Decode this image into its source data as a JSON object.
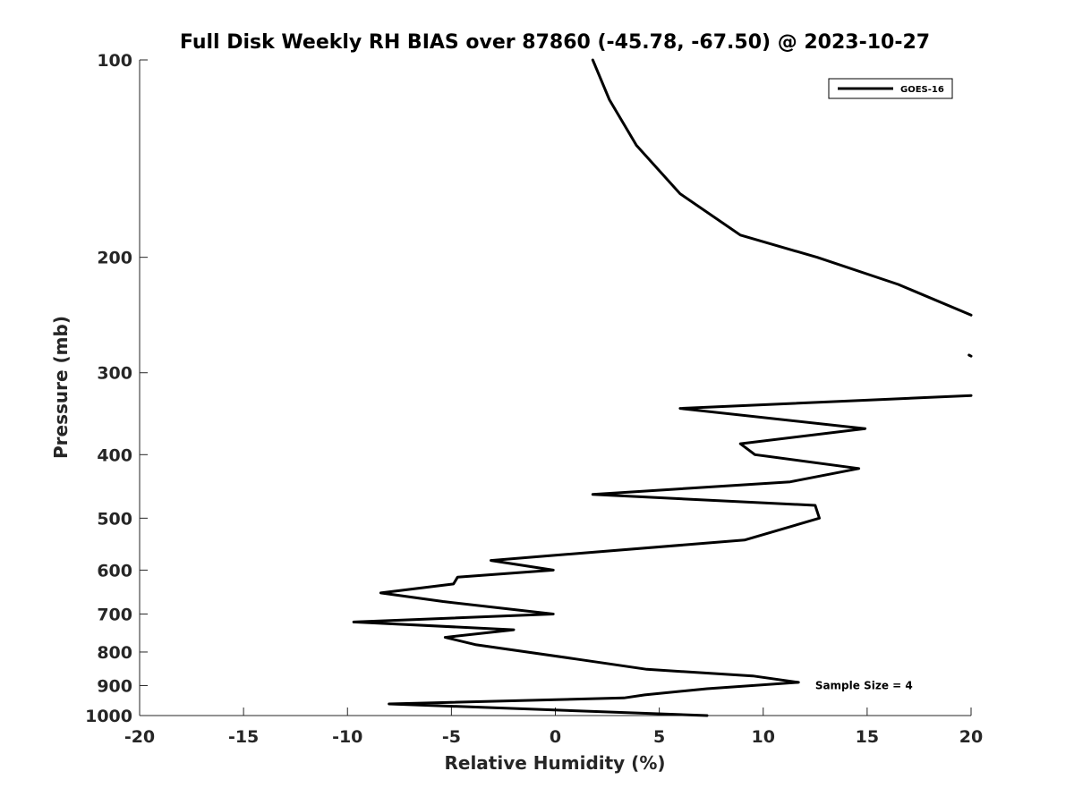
{
  "chart_data": {
    "type": "line",
    "title": "Full Disk Weekly RH BIAS over 87860 (-45.78, -67.50) @ 2023-10-27",
    "xlabel": "Relative Humidity (%)",
    "ylabel": "Pressure (mb)",
    "xlim": [
      -20,
      20
    ],
    "ylim": [
      100,
      1000
    ],
    "yscale": "log",
    "y_reversed": true,
    "x_ticks": [
      -20,
      -15,
      -10,
      -5,
      0,
      5,
      10,
      15,
      20
    ],
    "x_tick_labels": [
      "-20",
      "-15",
      "-10",
      "-5",
      "0",
      "5",
      "10",
      "15",
      "20"
    ],
    "y_ticks": [
      100,
      200,
      300,
      400,
      500,
      600,
      700,
      800,
      900,
      1000
    ],
    "y_tick_labels": [
      "100",
      "200",
      "300",
      "400",
      "500",
      "600",
      "700",
      "800",
      "900",
      "1000"
    ],
    "grid": false,
    "legend_position": "top-right",
    "line_color": "#000000",
    "series": [
      {
        "name": "GOES-16",
        "segments": [
          [
            {
              "x": 1.8,
              "y": 100
            },
            {
              "x": 2.6,
              "y": 115
            },
            {
              "x": 3.9,
              "y": 135
            },
            {
              "x": 6.0,
              "y": 160
            },
            {
              "x": 8.9,
              "y": 185
            },
            {
              "x": 12.6,
              "y": 200
            },
            {
              "x": 16.5,
              "y": 220
            },
            {
              "x": 20.0,
              "y": 245
            }
          ],
          [
            {
              "x": 19.9,
              "y": 282
            },
            {
              "x": 20.0,
              "y": 283
            }
          ],
          [
            {
              "x": 20.0,
              "y": 325
            },
            {
              "x": 6.0,
              "y": 340
            },
            {
              "x": 14.9,
              "y": 365
            },
            {
              "x": 8.9,
              "y": 385
            },
            {
              "x": 9.6,
              "y": 400
            },
            {
              "x": 14.6,
              "y": 420
            },
            {
              "x": 11.3,
              "y": 440
            },
            {
              "x": 1.8,
              "y": 460
            },
            {
              "x": 12.5,
              "y": 478
            },
            {
              "x": 12.7,
              "y": 500
            },
            {
              "x": 9.1,
              "y": 540
            },
            {
              "x": -0.2,
              "y": 570
            },
            {
              "x": -3.1,
              "y": 580
            },
            {
              "x": -0.1,
              "y": 600
            },
            {
              "x": -4.7,
              "y": 615
            },
            {
              "x": -4.9,
              "y": 630
            },
            {
              "x": -8.4,
              "y": 650
            },
            {
              "x": -5.4,
              "y": 670
            },
            {
              "x": -0.1,
              "y": 700
            },
            {
              "x": -9.7,
              "y": 720
            },
            {
              "x": -2.0,
              "y": 740
            },
            {
              "x": -5.3,
              "y": 760
            },
            {
              "x": -3.8,
              "y": 780
            },
            {
              "x": 1.0,
              "y": 820
            },
            {
              "x": 4.4,
              "y": 850
            },
            {
              "x": 9.5,
              "y": 870
            },
            {
              "x": 11.7,
              "y": 890
            },
            {
              "x": 7.3,
              "y": 910
            },
            {
              "x": 4.3,
              "y": 930
            },
            {
              "x": 3.3,
              "y": 940
            },
            {
              "x": -8.0,
              "y": 960
            },
            {
              "x": 7.3,
              "y": 1000
            }
          ]
        ]
      }
    ],
    "annotations": [
      {
        "text": "Sample Size = 4",
        "x": 12.5,
        "y": 900
      }
    ]
  }
}
